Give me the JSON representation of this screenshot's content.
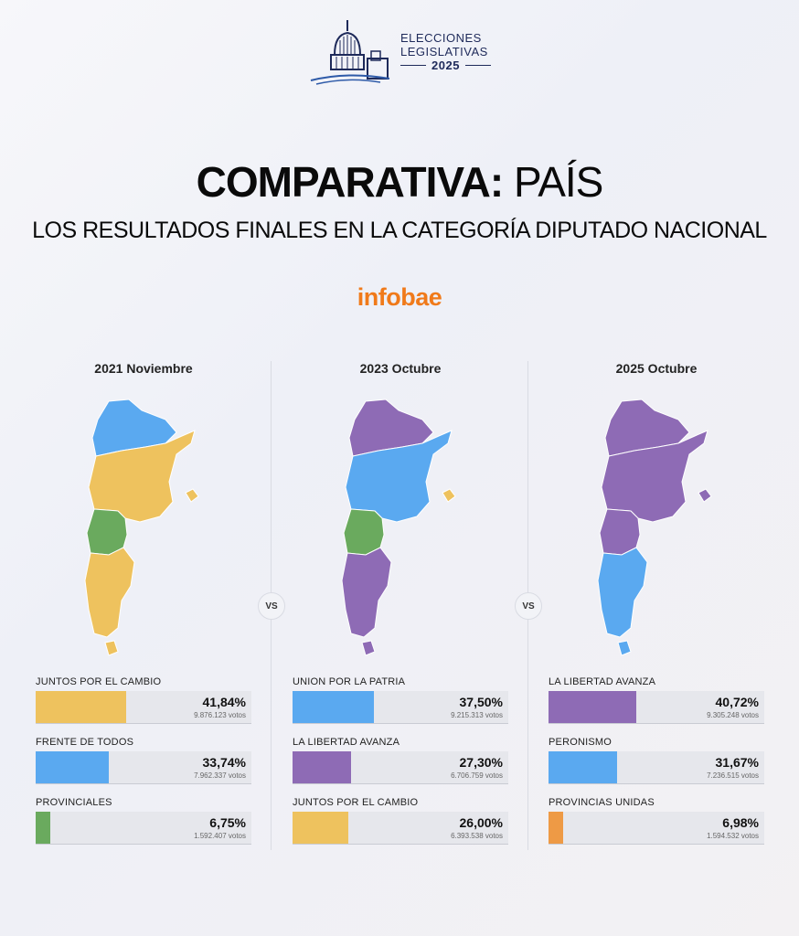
{
  "header": {
    "logo_line1": "ELECCIONES",
    "logo_line2": "LEGISLATIVAS",
    "logo_year": "2025"
  },
  "title_bold": "COMPARATIVA:",
  "title_light": "PAÍS",
  "subtitle": "LOS RESULTADOS FINALES EN LA CATEGORÍA DIPUTADO NACIONAL",
  "brand": "infobae",
  "vs_label": "VS",
  "columns": [
    {
      "title": "2021 Noviembre",
      "map_colors": {
        "north": "#5aa9f0",
        "center": "#eec25e",
        "south1": "#6aaa5e",
        "south2": "#eec25e",
        "island": "#eec25e"
      },
      "results": [
        {
          "party": "JUNTOS POR EL CAMBIO",
          "percent": "41,84%",
          "share": 41.84,
          "votes": "9.876.123 votos",
          "color": "#eec25e"
        },
        {
          "party": "FRENTE DE TODOS",
          "percent": "33,74%",
          "share": 33.74,
          "votes": "7.962.337 votos",
          "color": "#5aa9f0"
        },
        {
          "party": "PROVINCIALES",
          "percent": "6,75%",
          "share": 6.75,
          "votes": "1.592.407 votos",
          "color": "#6aaa5e"
        }
      ]
    },
    {
      "title": "2023 Octubre",
      "map_colors": {
        "north": "#8e6bb5",
        "center": "#5aa9f0",
        "south1": "#6aaa5e",
        "south2": "#8e6bb5",
        "island": "#eec25e"
      },
      "results": [
        {
          "party": "UNION POR LA PATRIA",
          "percent": "37,50%",
          "share": 37.5,
          "votes": "9.215.313 votos",
          "color": "#5aa9f0"
        },
        {
          "party": "LA LIBERTAD AVANZA",
          "percent": "27,30%",
          "share": 27.3,
          "votes": "6.706.759 votos",
          "color": "#8e6bb5"
        },
        {
          "party": "JUNTOS POR EL CAMBIO",
          "percent": "26,00%",
          "share": 26.0,
          "votes": "6.393.538 votos",
          "color": "#eec25e"
        }
      ]
    },
    {
      "title": "2025 Octubre",
      "map_colors": {
        "north": "#8e6bb5",
        "center": "#8e6bb5",
        "south1": "#8e6bb5",
        "south2": "#5aa9f0",
        "island": "#8e6bb5"
      },
      "results": [
        {
          "party": "LA LIBERTAD AVANZA",
          "percent": "40,72%",
          "share": 40.72,
          "votes": "9.305.248 votos",
          "color": "#8e6bb5"
        },
        {
          "party": "PERONISMO",
          "percent": "31,67%",
          "share": 31.67,
          "votes": "7.236.515 votos",
          "color": "#5aa9f0"
        },
        {
          "party": "PROVINCIAS UNIDAS",
          "percent": "6,98%",
          "share": 6.98,
          "votes": "1.594.532 votos",
          "color": "#ee9a45"
        }
      ]
    }
  ]
}
